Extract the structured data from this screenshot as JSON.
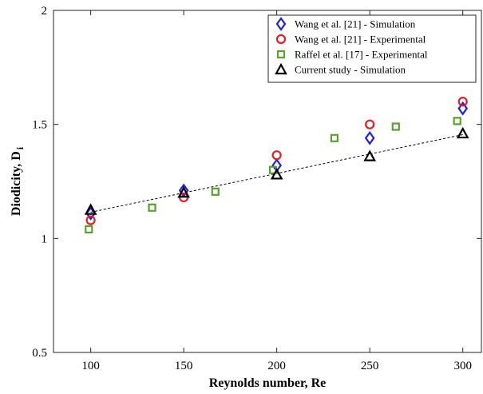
{
  "chart_data": {
    "type": "scatter",
    "xlabel": "Reynolds number, Re",
    "ylabel": "Diodicity, D",
    "ylabel_subscript": "i",
    "xlim": [
      80,
      310
    ],
    "ylim": [
      0.5,
      2
    ],
    "xticks": [
      100,
      150,
      200,
      250,
      300
    ],
    "yticks": [
      0.5,
      1,
      1.5,
      2
    ],
    "ytick_labels": [
      "0.5",
      "1",
      "1.5",
      "2"
    ],
    "grid": false,
    "legend_position": "top-right",
    "series": [
      {
        "name": "Wang et al. [21] - Simulation",
        "marker": "diamond",
        "color": "#1f1fe0",
        "x": [
          100,
          150,
          200,
          250,
          300
        ],
        "y": [
          1.11,
          1.21,
          1.32,
          1.44,
          1.57
        ]
      },
      {
        "name": "Wang et al. [21] - Experimental",
        "marker": "circle",
        "color": "#e31e24",
        "x": [
          100,
          150,
          200,
          250,
          300
        ],
        "y": [
          1.08,
          1.18,
          1.365,
          1.5,
          1.6
        ]
      },
      {
        "name": "Raffel et al. [17] - Experimental",
        "marker": "square",
        "color": "#5aa02c",
        "x": [
          99,
          133,
          167,
          198,
          231,
          264,
          297
        ],
        "y": [
          1.04,
          1.135,
          1.205,
          1.3,
          1.44,
          1.49,
          1.515
        ]
      },
      {
        "name": "Current study - Simulation",
        "marker": "triangle",
        "color": "#000000",
        "x": [
          100,
          150,
          200,
          250,
          300
        ],
        "y": [
          1.125,
          1.2,
          1.28,
          1.36,
          1.46
        ]
      }
    ],
    "trendline": {
      "style": "dashed",
      "color": "#000000",
      "x": [
        100,
        300
      ],
      "y": [
        1.115,
        1.455
      ]
    }
  }
}
